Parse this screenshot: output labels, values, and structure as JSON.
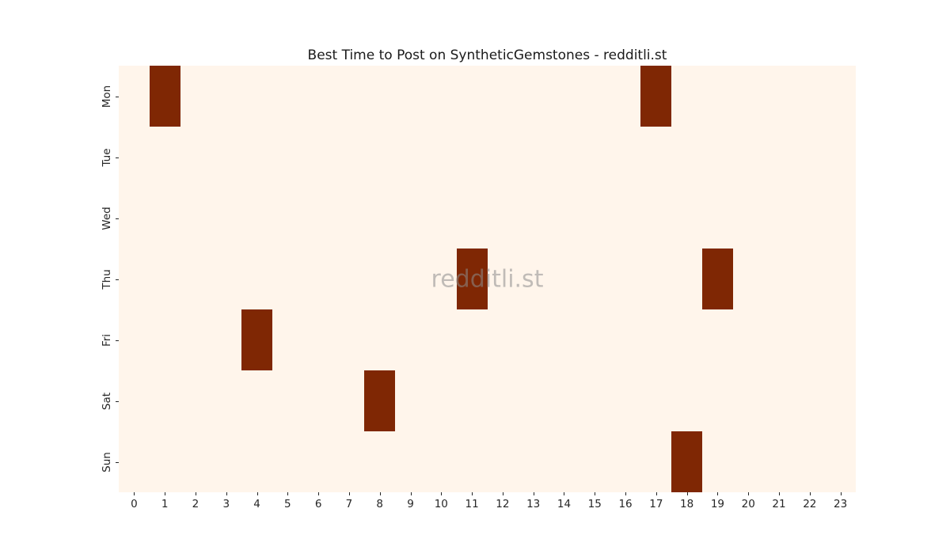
{
  "chart_data": {
    "type": "heatmap",
    "title": "Best Time to Post on SyntheticGemstones - redditli.st",
    "watermark": "redditli.st",
    "xlabel": "",
    "ylabel": "",
    "x_labels": [
      "0",
      "1",
      "2",
      "3",
      "4",
      "5",
      "6",
      "7",
      "8",
      "9",
      "10",
      "11",
      "12",
      "13",
      "14",
      "15",
      "16",
      "17",
      "18",
      "19",
      "20",
      "21",
      "22",
      "23"
    ],
    "y_labels": [
      "Mon",
      "Tue",
      "Wed",
      "Thu",
      "Fri",
      "Sat",
      "Sun"
    ],
    "values": [
      [
        0,
        1,
        0,
        0,
        0,
        0,
        0,
        0,
        0,
        0,
        0,
        0,
        0,
        0,
        0,
        0,
        0,
        1,
        0,
        0,
        0,
        0,
        0,
        0
      ],
      [
        0,
        0,
        0,
        0,
        0,
        0,
        0,
        0,
        0,
        0,
        0,
        0,
        0,
        0,
        0,
        0,
        0,
        0,
        0,
        0,
        0,
        0,
        0,
        0
      ],
      [
        0,
        0,
        0,
        0,
        0,
        0,
        0,
        0,
        0,
        0,
        0,
        0,
        0,
        0,
        0,
        0,
        0,
        0,
        0,
        0,
        0,
        0,
        0,
        0
      ],
      [
        0,
        0,
        0,
        0,
        0,
        0,
        0,
        0,
        0,
        0,
        0,
        1,
        0,
        0,
        0,
        0,
        0,
        0,
        0,
        1,
        0,
        0,
        0,
        0
      ],
      [
        0,
        0,
        0,
        0,
        1,
        0,
        0,
        0,
        0,
        0,
        0,
        0,
        0,
        0,
        0,
        0,
        0,
        0,
        0,
        0,
        0,
        0,
        0,
        0
      ],
      [
        0,
        0,
        0,
        0,
        0,
        0,
        0,
        0,
        1,
        0,
        0,
        0,
        0,
        0,
        0,
        0,
        0,
        0,
        0,
        0,
        0,
        0,
        0,
        0
      ],
      [
        0,
        0,
        0,
        0,
        0,
        0,
        0,
        0,
        0,
        0,
        0,
        0,
        0,
        0,
        0,
        0,
        0,
        0,
        1,
        0,
        0,
        0,
        0,
        0
      ]
    ],
    "highlighted_cells": [
      {
        "day": "Mon",
        "hour": 1
      },
      {
        "day": "Mon",
        "hour": 17
      },
      {
        "day": "Thu",
        "hour": 11
      },
      {
        "day": "Thu",
        "hour": 19
      },
      {
        "day": "Fri",
        "hour": 4
      },
      {
        "day": "Sat",
        "hour": 8
      },
      {
        "day": "Sun",
        "hour": 18
      }
    ],
    "colors": {
      "cell_low": "#fff5eb",
      "cell_high": "#7f2704",
      "text": "#262626",
      "watermark": "#8d8d8d",
      "figure_background": "#ffffff"
    },
    "layout_hints": {
      "grid": "off",
      "legend": "none",
      "colorbar": "none"
    }
  }
}
